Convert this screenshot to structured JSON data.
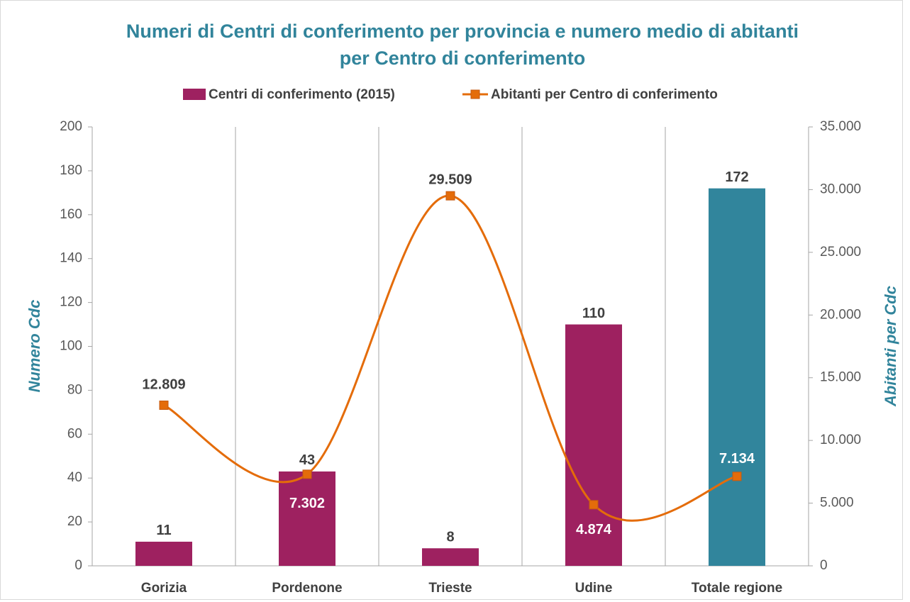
{
  "chart_data": {
    "type": "bar",
    "title": "Numeri di Centri di conferimento per provincia e numero medio di abitanti per Centro di conferimento",
    "categories": [
      "Gorizia",
      "Pordenone",
      "Trieste",
      "Udine",
      "Totale regione"
    ],
    "series": [
      {
        "name": "Centri di conferimento (2015)",
        "type": "bar",
        "color": "#9e2160",
        "colors": [
          "#9e2160",
          "#9e2160",
          "#9e2160",
          "#9e2160",
          "#31859c"
        ],
        "values": [
          11,
          43,
          8,
          110,
          172
        ]
      },
      {
        "name": "Abitanti per Centro di conferimento",
        "type": "line",
        "axis": "y2",
        "color": "#e46c0a",
        "values": [
          12809,
          7302,
          29509,
          4874,
          7134
        ],
        "value_labels": [
          "12.809",
          "7.302",
          "29.509",
          "4.874",
          "7.134"
        ]
      }
    ],
    "ylabel": "Numero Cdc",
    "y2label": "Abitanti per Cdc",
    "ylim": [
      0,
      200
    ],
    "yticks": [
      0,
      20,
      40,
      60,
      80,
      100,
      120,
      140,
      160,
      180,
      200
    ],
    "y2lim": [
      0,
      35000
    ],
    "y2ticks": [
      0,
      {
        "value": 5000,
        "label": "5.000"
      },
      {
        "value": 10000,
        "label": "10.000"
      },
      {
        "value": 15000,
        "label": "15.000"
      },
      {
        "value": 20000,
        "label": "20.000"
      },
      {
        "value": 25000,
        "label": "25.000"
      },
      {
        "value": 30000,
        "label": "30.000"
      },
      {
        "value": 35000,
        "label": "35.000"
      }
    ],
    "legend": "top"
  }
}
